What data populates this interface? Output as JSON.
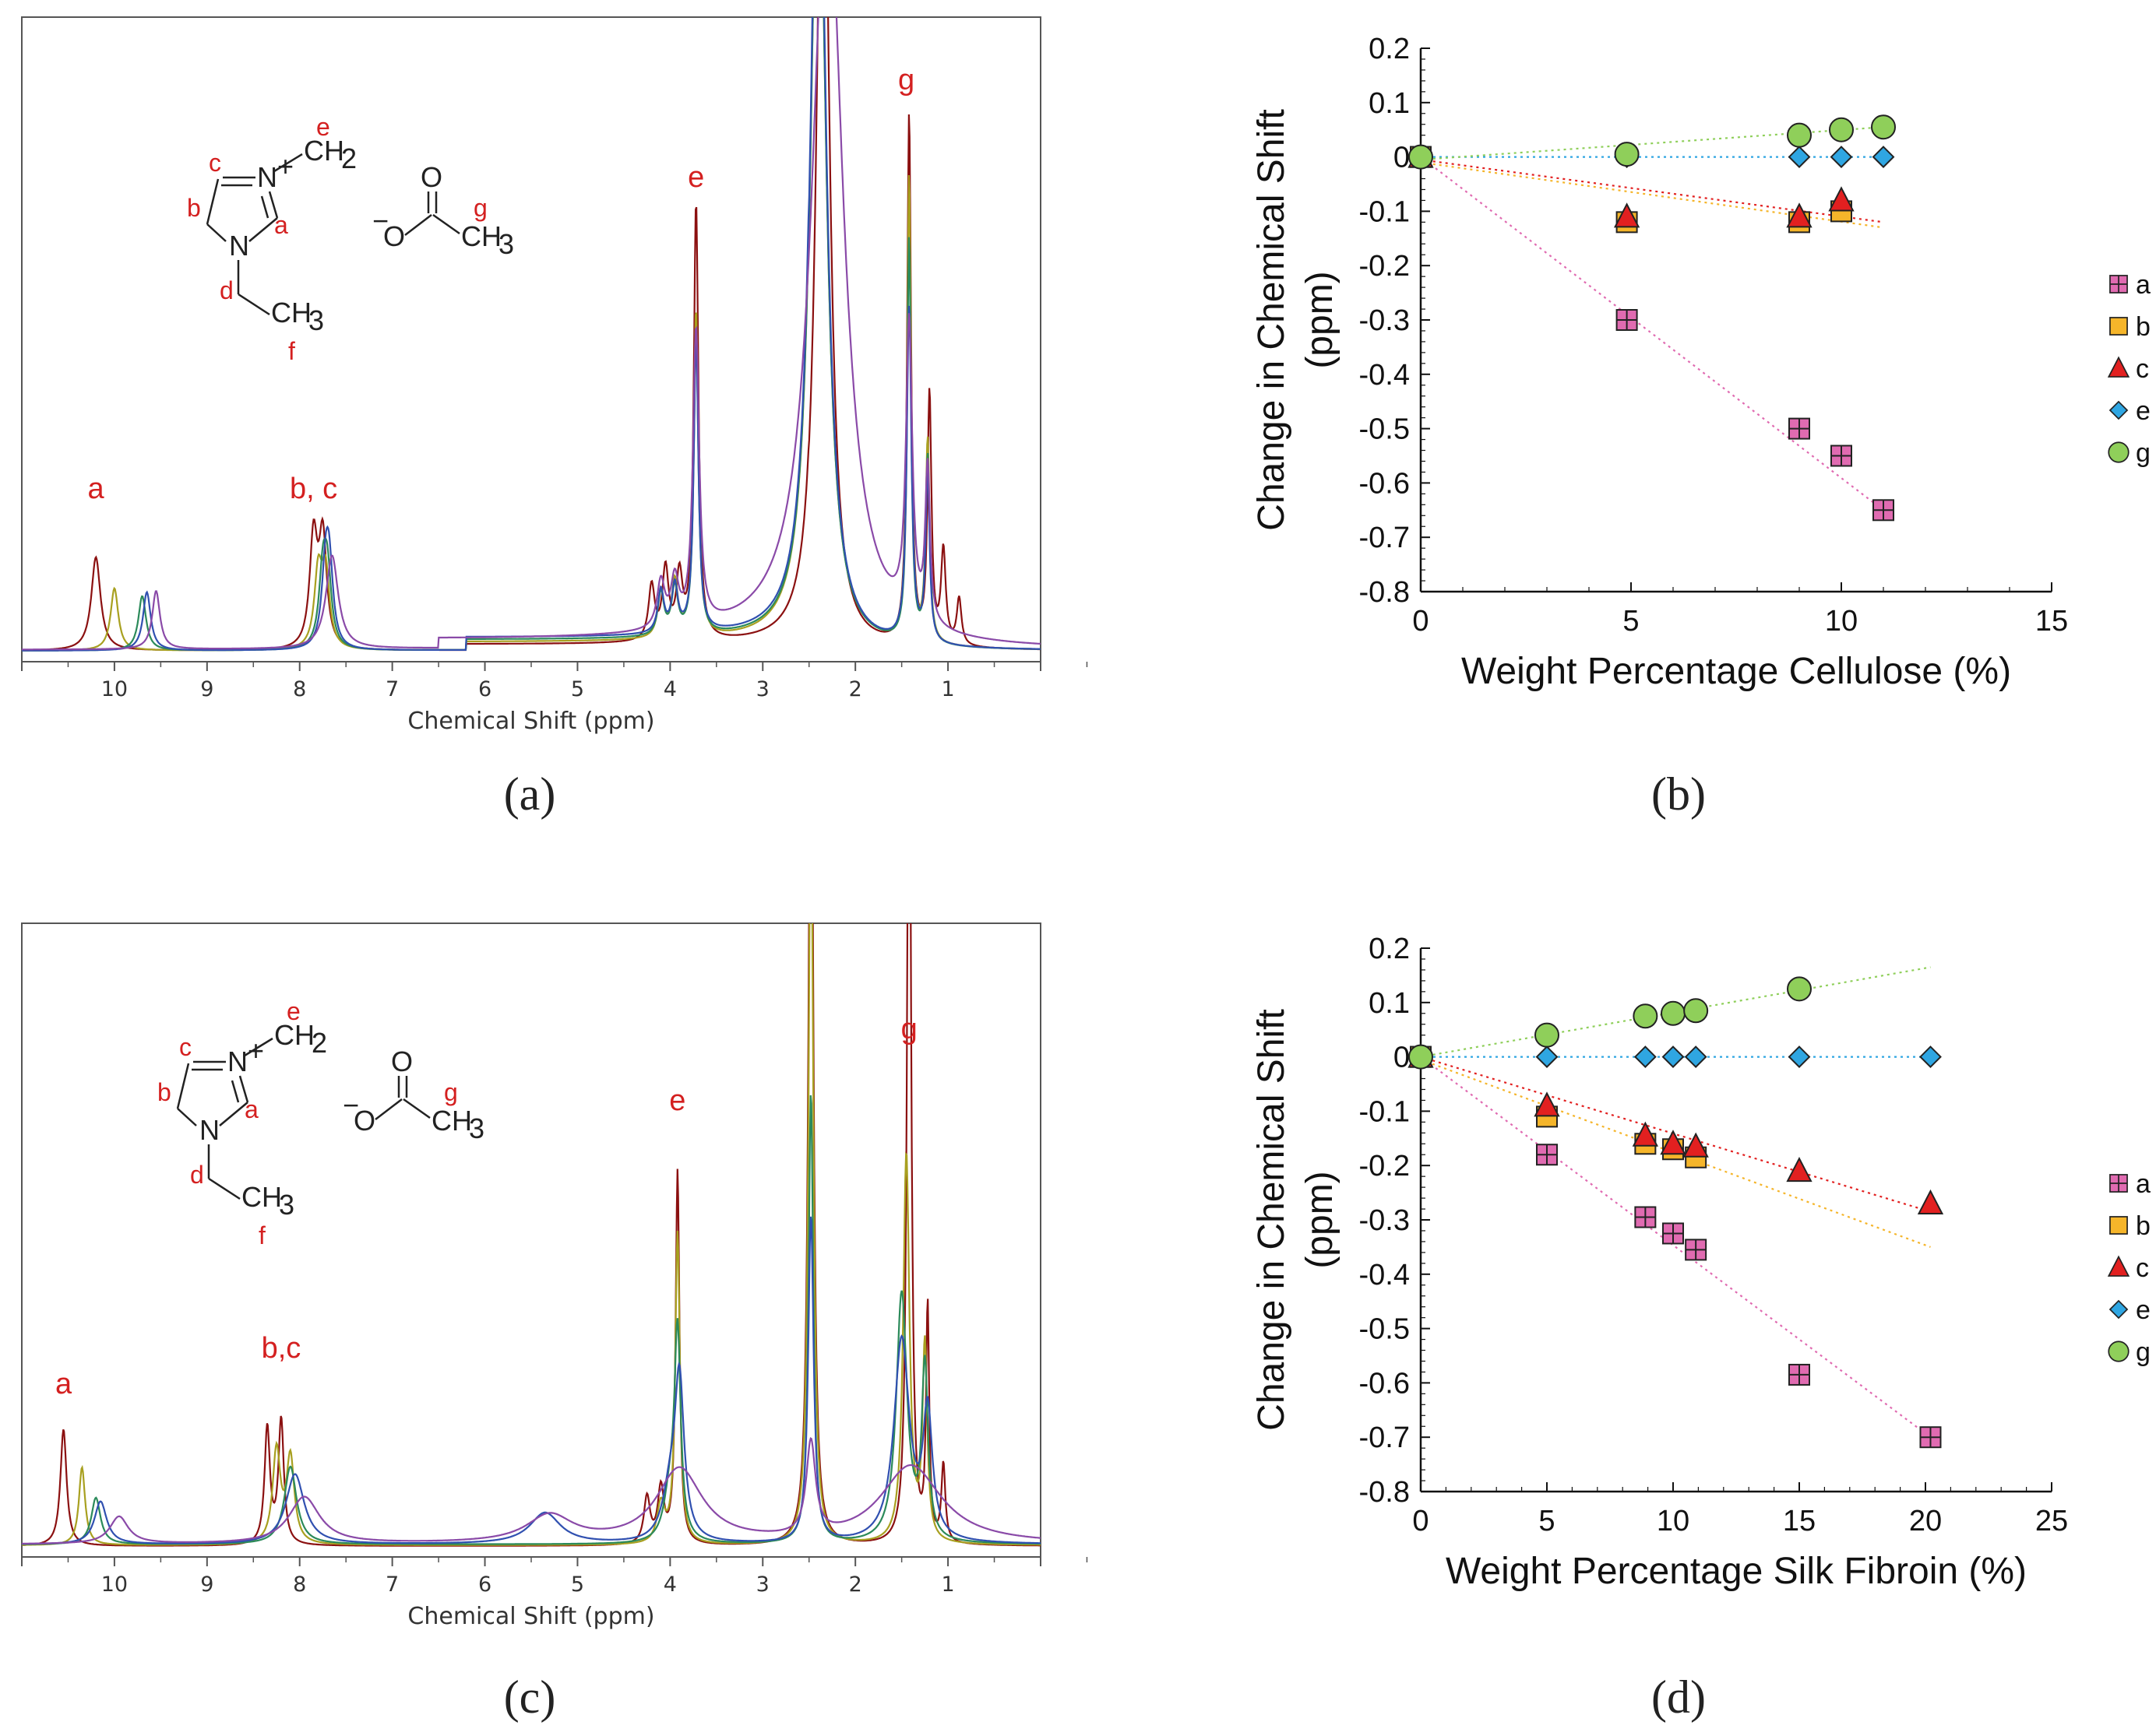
{
  "panels": {
    "a": "(a)",
    "b": "(b)",
    "c": "(c)",
    "d": "(d)"
  },
  "colors": {
    "label_red": "#d42020",
    "series_a": "#e06bb1",
    "series_b": "#f5b52a",
    "series_c": "#e22020",
    "series_e": "#2fa6e2",
    "series_g": "#8fcf5a",
    "spectrum_lines": [
      "#8b1010",
      "#a8a020",
      "#2b8a5a",
      "#3050b0",
      "#8a4aa8"
    ]
  },
  "chart_data": [
    {
      "panel": "a",
      "type": "line",
      "subtype": "nmr_spectrum",
      "xlabel": "Chemical Shift (ppm)",
      "xticks": [
        "10",
        "9",
        "8",
        "7",
        "6",
        "5",
        "4",
        "3",
        "2",
        "1"
      ],
      "xlim": [
        11,
        0
      ],
      "peak_labels": [
        "a",
        "b, c",
        "e",
        "g"
      ],
      "molecule": {
        "cation_labels": [
          "c",
          "b",
          "a",
          "e",
          "d",
          "f"
        ],
        "atoms": [
          "N",
          "N",
          "+",
          "CH2",
          "CH3"
        ],
        "anion_labels": [
          "g"
        ],
        "anion_atoms": [
          "O",
          "O",
          "CH3",
          "−"
        ]
      }
    },
    {
      "panel": "b",
      "type": "scatter",
      "xlabel": "Weight Percentage Cellulose (%)",
      "ylabel": "Change in Chemical Shift (ppm)",
      "ylabel_lines": [
        "Change in Chemical Shift",
        "(ppm)"
      ],
      "xlim": [
        0,
        15
      ],
      "ylim": [
        -0.8,
        0.2
      ],
      "xticks": [
        "0",
        "5",
        "10",
        "15"
      ],
      "yticks": [
        "0.2",
        "0.1",
        "0",
        "-0.1",
        "-0.2",
        "-0.3",
        "-0.4",
        "-0.5",
        "-0.6",
        "-0.7",
        "-0.8"
      ],
      "legend": [
        "a",
        "b",
        "c",
        "e",
        "g"
      ],
      "series": [
        {
          "name": "a",
          "marker": "square-plus",
          "x": [
            0,
            4.9,
            9,
            10,
            11
          ],
          "y": [
            0,
            -0.3,
            -0.5,
            -0.55,
            -0.65
          ],
          "trend": [
            [
              0,
              0
            ],
            [
              11,
              -0.65
            ]
          ]
        },
        {
          "name": "b",
          "marker": "square",
          "x": [
            0,
            4.9,
            9,
            10
          ],
          "y": [
            0,
            -0.12,
            -0.12,
            -0.1
          ],
          "trend": [
            [
              0,
              -0.01
            ],
            [
              11,
              -0.13
            ]
          ]
        },
        {
          "name": "c",
          "marker": "triangle",
          "x": [
            0,
            4.9,
            9,
            10
          ],
          "y": [
            0,
            -0.11,
            -0.11,
            -0.08
          ],
          "trend": [
            [
              0,
              -0.005
            ],
            [
              11,
              -0.12
            ]
          ]
        },
        {
          "name": "e",
          "marker": "diamond",
          "x": [
            0,
            4.9,
            9,
            10,
            11
          ],
          "y": [
            0,
            0,
            0,
            0,
            0
          ],
          "trend": [
            [
              0,
              0
            ],
            [
              11,
              0
            ]
          ]
        },
        {
          "name": "g",
          "marker": "circle",
          "x": [
            0,
            4.9,
            9,
            10,
            11
          ],
          "y": [
            0,
            0.005,
            0.04,
            0.05,
            0.055
          ],
          "trend": [
            [
              0,
              -0.005
            ],
            [
              11,
              0.055
            ]
          ]
        }
      ]
    },
    {
      "panel": "c",
      "type": "line",
      "subtype": "nmr_spectrum",
      "xlabel": "Chemical Shift (ppm)",
      "xticks": [
        "10",
        "9",
        "8",
        "7",
        "6",
        "5",
        "4",
        "3",
        "2",
        "1"
      ],
      "xlim": [
        11,
        0
      ],
      "peak_labels": [
        "a",
        "b,c",
        "e",
        "g"
      ],
      "molecule": {
        "cation_labels": [
          "c",
          "b",
          "a",
          "e",
          "d",
          "f"
        ],
        "atoms": [
          "N",
          "N",
          "+",
          "CH2",
          "CH3"
        ],
        "anion_labels": [
          "g"
        ],
        "anion_atoms": [
          "O",
          "O",
          "CH3",
          "−"
        ]
      }
    },
    {
      "panel": "d",
      "type": "scatter",
      "xlabel": "Weight Percentage Silk Fibroin (%)",
      "ylabel": "Change in Chemical Shift (ppm)",
      "ylabel_lines": [
        "Change in Chemical Shift",
        "(ppm)"
      ],
      "xlim": [
        0,
        25
      ],
      "ylim": [
        -0.8,
        0.2
      ],
      "xticks": [
        "0",
        "5",
        "10",
        "15",
        "20",
        "25"
      ],
      "yticks": [
        "0.2",
        "0.1",
        "0",
        "-0.1",
        "-0.2",
        "-0.3",
        "-0.4",
        "-0.5",
        "-0.6",
        "-0.7",
        "-0.8"
      ],
      "legend": [
        "a",
        "b",
        "c",
        "e",
        "g"
      ],
      "series": [
        {
          "name": "a",
          "marker": "square-plus",
          "x": [
            0,
            5,
            8.9,
            10,
            10.9,
            15,
            20.2
          ],
          "y": [
            0,
            -0.18,
            -0.295,
            -0.325,
            -0.355,
            -0.585,
            -0.7
          ],
          "trend": [
            [
              0,
              0
            ],
            [
              20.2,
              -0.7
            ]
          ]
        },
        {
          "name": "b",
          "marker": "square",
          "x": [
            0,
            5,
            8.9,
            10,
            10.9
          ],
          "y": [
            0,
            -0.11,
            -0.16,
            -0.17,
            -0.185
          ],
          "trend": [
            [
              0,
              -0.005
            ],
            [
              20.2,
              -0.35
            ]
          ]
        },
        {
          "name": "c",
          "marker": "triangle",
          "x": [
            0,
            5,
            8.9,
            10,
            10.9,
            15,
            20.2
          ],
          "y": [
            0,
            -0.09,
            -0.145,
            -0.16,
            -0.165,
            -0.21,
            -0.27
          ],
          "trend": [
            [
              0,
              0
            ],
            [
              20.2,
              -0.285
            ]
          ]
        },
        {
          "name": "e",
          "marker": "diamond",
          "x": [
            0,
            5,
            8.9,
            10,
            10.9,
            15,
            20.2
          ],
          "y": [
            0,
            0,
            0,
            0,
            0,
            0,
            0
          ],
          "trend": [
            [
              0,
              0
            ],
            [
              20.2,
              0
            ]
          ]
        },
        {
          "name": "g",
          "marker": "circle",
          "x": [
            0,
            5,
            8.9,
            10,
            10.9,
            15
          ],
          "y": [
            0,
            0.04,
            0.075,
            0.08,
            0.085,
            0.125
          ],
          "trend": [
            [
              0,
              0
            ],
            [
              20.2,
              0.165
            ]
          ]
        }
      ]
    }
  ]
}
